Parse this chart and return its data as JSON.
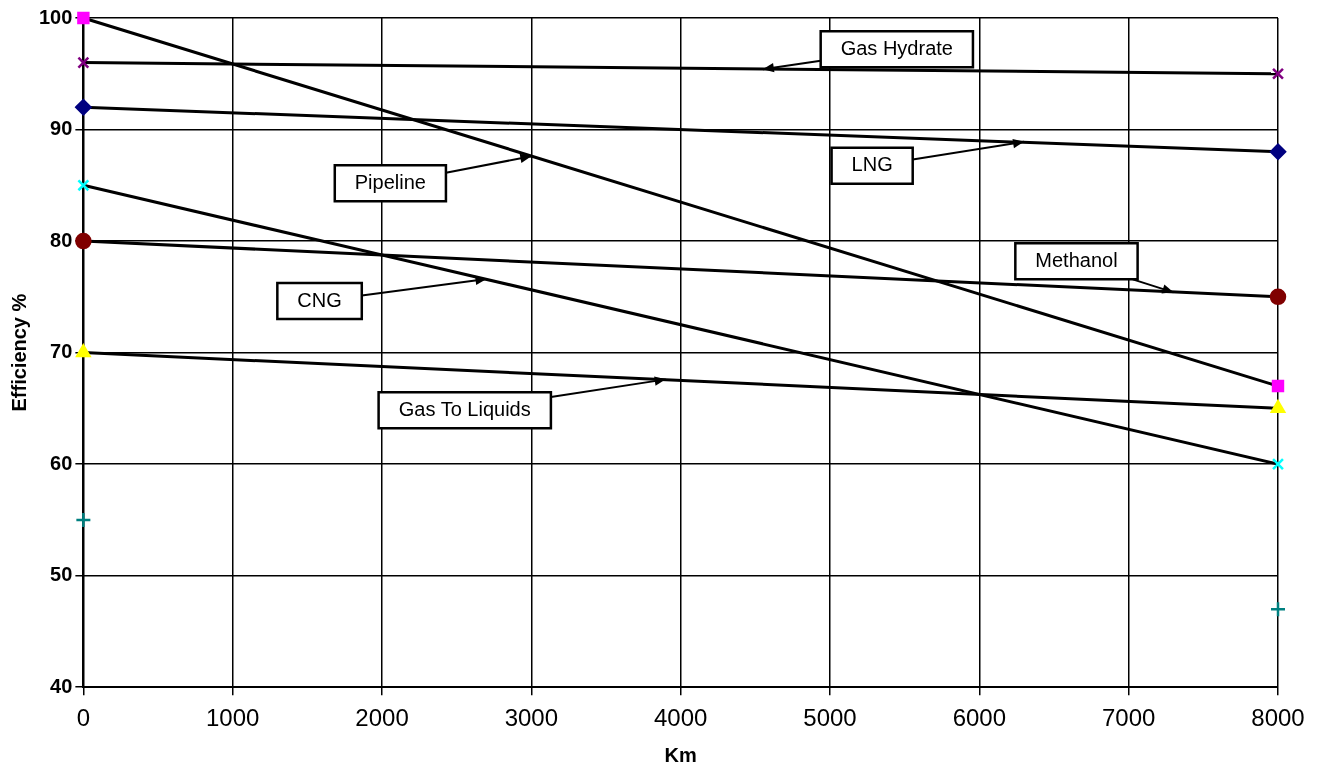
{
  "chart_data": {
    "type": "line",
    "xlabel": "Km",
    "ylabel": "Efficiency %",
    "xlim": [
      0,
      8000
    ],
    "xticks": [
      0,
      1000,
      2000,
      3000,
      4000,
      5000,
      6000,
      7000,
      8000
    ],
    "ylim": [
      40,
      100
    ],
    "yticks": [
      40,
      50,
      60,
      70,
      80,
      90,
      100
    ],
    "grid": true,
    "legend": false,
    "x": [
      0,
      8000
    ],
    "series": [
      {
        "color": "#ff00ff",
        "marker": "square",
        "values": [
          100,
          67
        ]
      },
      {
        "color": "#800080",
        "marker": "cross",
        "values": [
          96,
          95
        ]
      },
      {
        "color": "#000080",
        "marker": "diamond",
        "values": [
          92,
          88
        ]
      },
      {
        "color": "#00ffff",
        "marker": "cross",
        "values": [
          85,
          60
        ]
      },
      {
        "color": "#800000",
        "marker": "circle",
        "values": [
          80,
          75
        ]
      },
      {
        "color": "#ffff00",
        "marker": "triangle",
        "values": [
          70,
          65
        ]
      },
      {
        "type": "scatter",
        "color": "#008080",
        "marker": "plus",
        "values": [
          55,
          47
        ]
      }
    ],
    "annotations": [
      {
        "text": "Gas Hydrate",
        "x": 4550,
        "y": 95.4
      },
      {
        "text": "LNG",
        "x": 6300,
        "y": 88.9
      },
      {
        "text": "Pipeline",
        "x": 3000,
        "y": 87.6
      },
      {
        "text": "Methanol",
        "x": 7300,
        "y": 75.4
      },
      {
        "text": "CNG",
        "x": 2700,
        "y": 76.6
      },
      {
        "text": "Gas To Liquids",
        "x": 3900,
        "y": 67.6
      }
    ]
  }
}
